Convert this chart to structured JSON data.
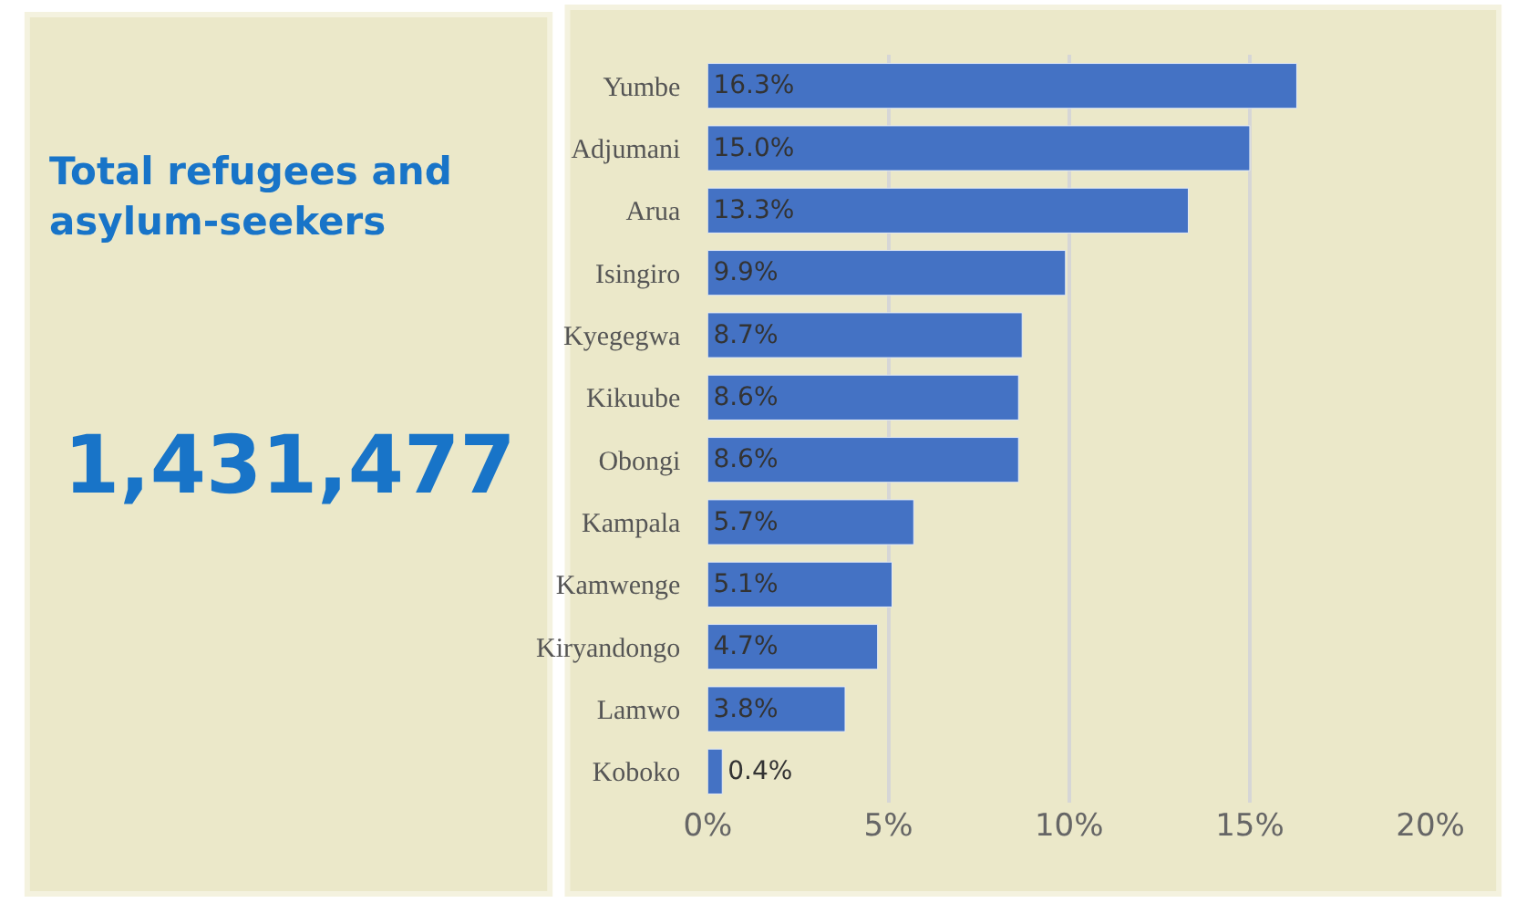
{
  "chart_data": [
    {
      "type": "other",
      "title": "Total refugees and asylum-seekers",
      "annotations": [
        "1,431,477"
      ],
      "color": "#1874c8"
    },
    {
      "type": "bar",
      "orientation": "horizontal",
      "categories": [
        "Yumbe",
        "Adjumani",
        "Arua",
        "Isingiro",
        "Kyegegwa",
        "Kikuube",
        "Obongi",
        "Kampala",
        "Kamwenge",
        "Kiryandongo",
        "Lamwo",
        "Koboko"
      ],
      "values": [
        16.3,
        15.0,
        13.3,
        9.9,
        8.7,
        8.6,
        8.6,
        5.7,
        5.1,
        4.7,
        3.8,
        0.4
      ],
      "value_labels": [
        "16.3%",
        "15.0%",
        "13.3%",
        "9.9%",
        "8.7%",
        "8.6%",
        "8.6%",
        "5.7%",
        "5.1%",
        "4.7%",
        "3.8%",
        "0.4%"
      ],
      "color": "#4472c4",
      "xlim": [
        0,
        20
      ],
      "xticks": [
        {
          "value": 0,
          "label": "0%"
        },
        {
          "value": 5,
          "label": "5%"
        },
        {
          "value": 10,
          "label": "10%"
        },
        {
          "value": 15,
          "label": "15%"
        },
        {
          "value": 20,
          "label": "20%"
        }
      ],
      "grid": "x"
    }
  ]
}
